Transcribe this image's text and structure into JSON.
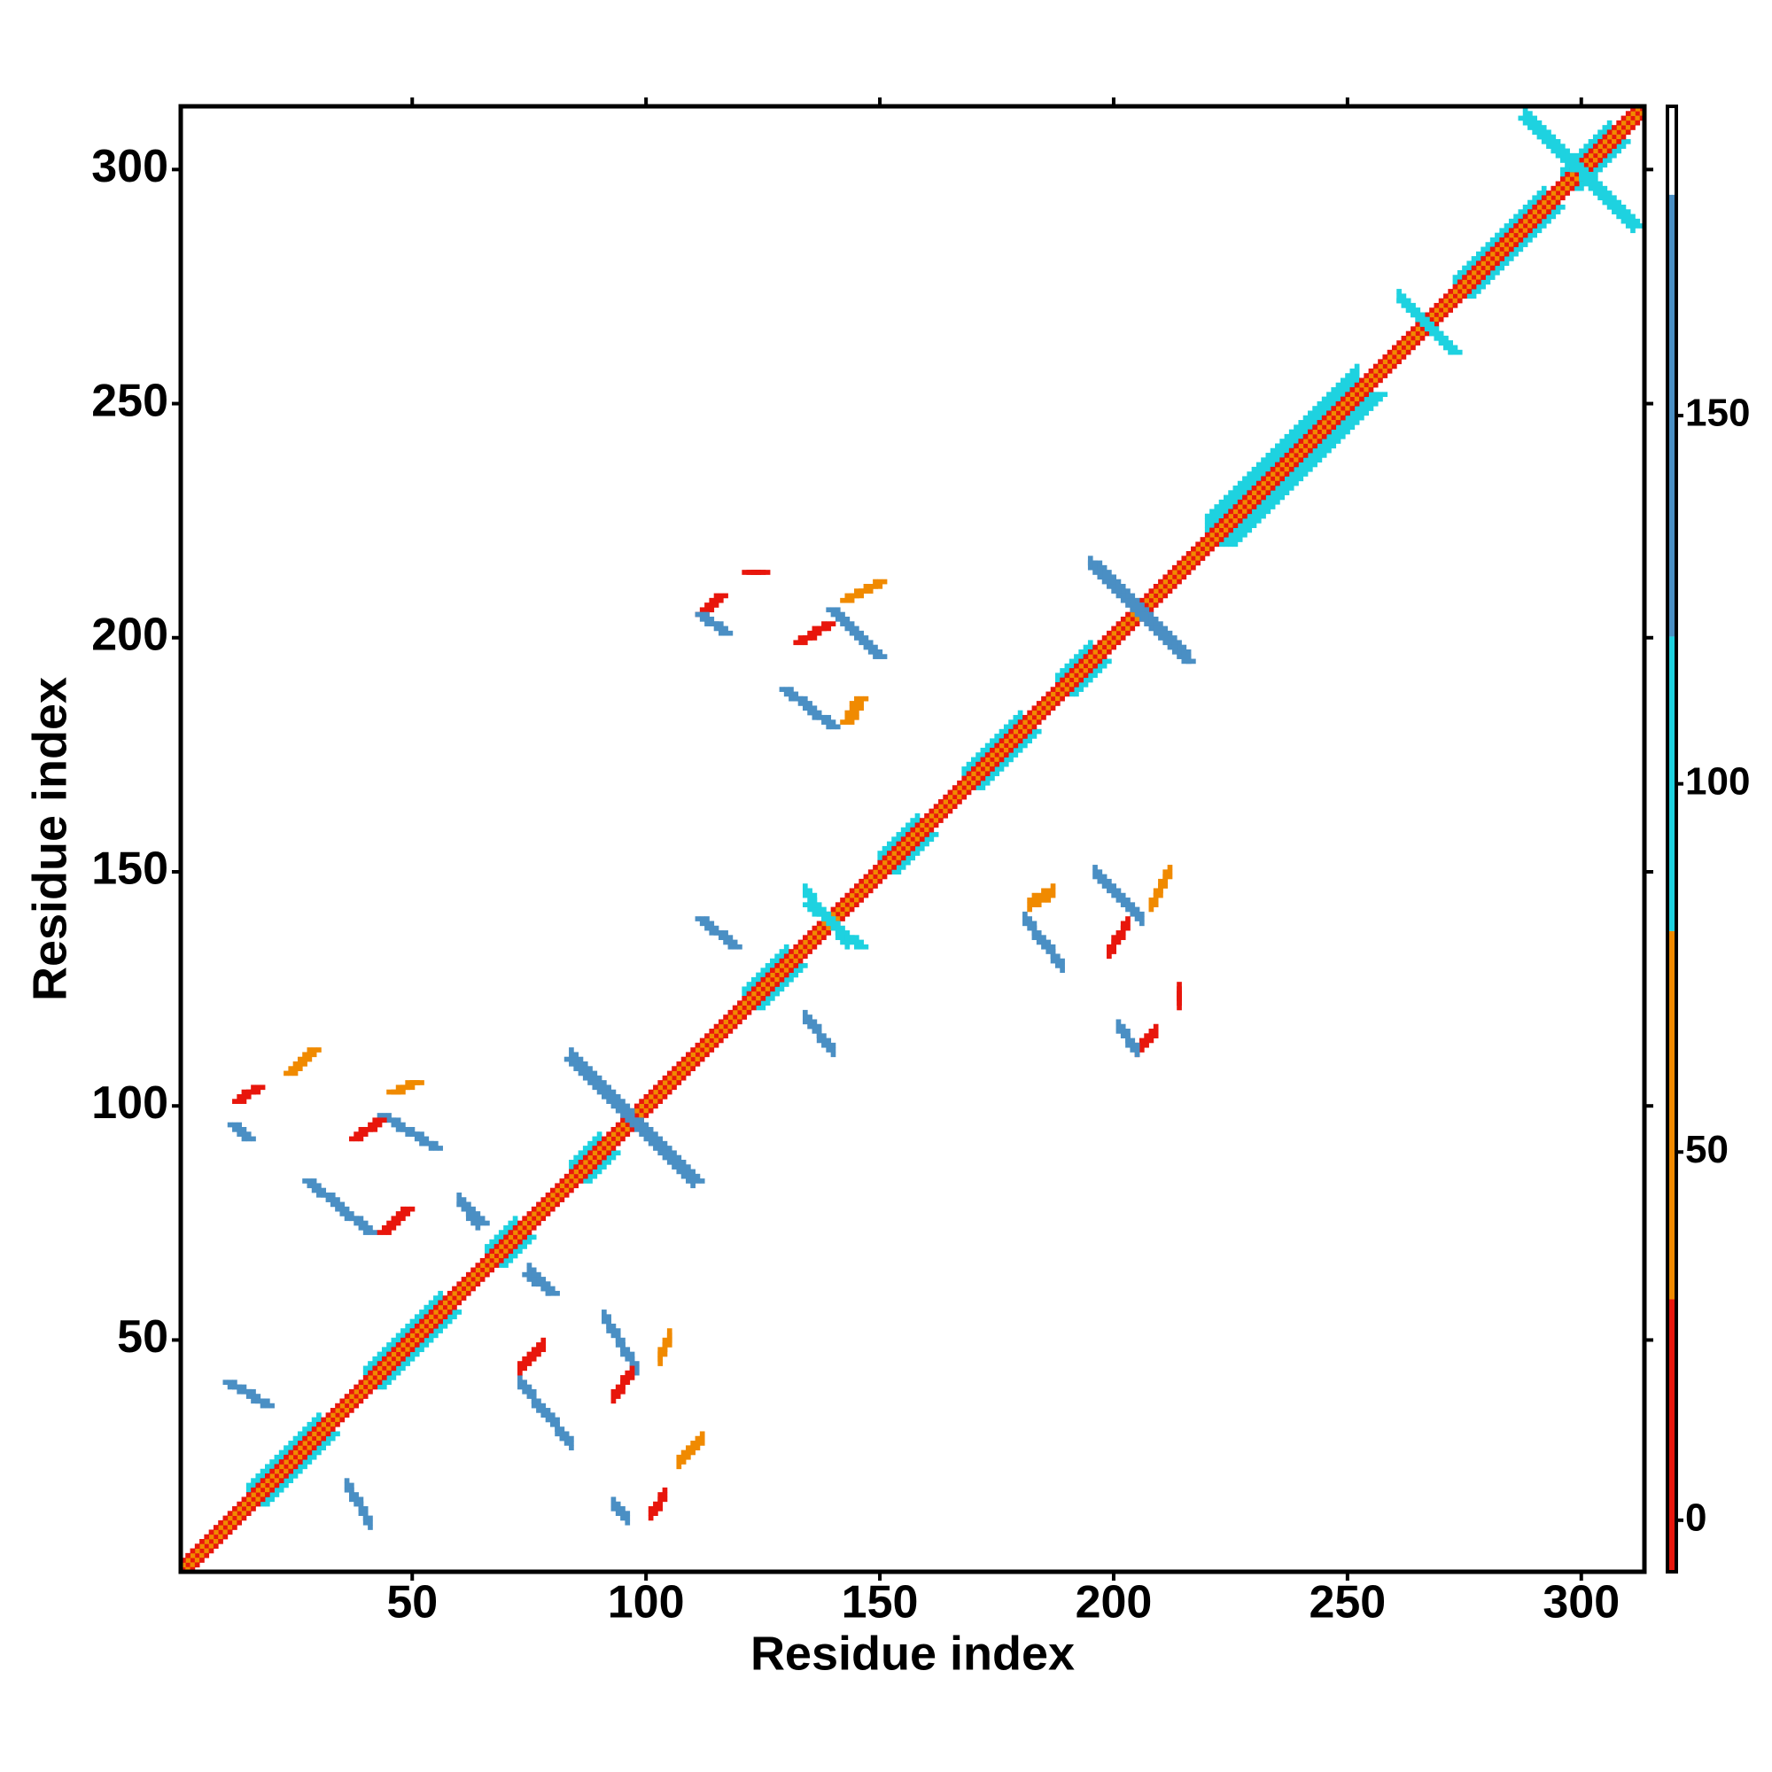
{
  "chart_data": {
    "type": "heatmap",
    "xlabel": "Residue index",
    "ylabel": "Residue index",
    "xlim": [
      0.5,
      313.5
    ],
    "ylim": [
      0.5,
      313.5
    ],
    "xticks": [
      50,
      100,
      150,
      200,
      250,
      300
    ],
    "yticks": [
      50,
      100,
      150,
      200,
      250,
      300
    ],
    "symmetric": true,
    "diagonal": {
      "offsets": [
        0,
        1,
        2
      ],
      "values": [
        10,
        60,
        10
      ]
    },
    "bands": [
      {
        "range": [
          15,
          30
        ],
        "offsets": [
          3,
          4
        ],
        "value": 95
      },
      {
        "range": [
          40,
          56
        ],
        "offsets": [
          3,
          4
        ],
        "value": 95
      },
      {
        "range": [
          66,
          72
        ],
        "offsets": [
          3,
          4
        ],
        "value": 95
      },
      {
        "range": [
          84,
          90
        ],
        "offsets": [
          3,
          4
        ],
        "value": 95
      },
      {
        "range": [
          121,
          130
        ],
        "offsets": [
          3,
          4
        ],
        "value": 95
      },
      {
        "range": [
          150,
          158
        ],
        "offsets": [
          3,
          4
        ],
        "value": 95
      },
      {
        "range": [
          168,
          180
        ],
        "offsets": [
          3,
          4
        ],
        "value": 95
      },
      {
        "range": [
          188,
          195
        ],
        "offsets": [
          3,
          4
        ],
        "value": 95
      },
      {
        "range": [
          220,
          252
        ],
        "offsets": [
          3,
          4,
          5,
          6
        ],
        "value": 95
      },
      {
        "range": [
          273,
          292
        ],
        "offsets": [
          3,
          4
        ],
        "value": 95
      },
      {
        "range": [
          296,
          306
        ],
        "offsets": [
          3,
          4
        ],
        "value": 95
      }
    ],
    "contacts": [
      {
        "x": [
          11,
          19
        ],
        "y": [
          41,
          36
        ],
        "value": 150
      },
      {
        "x": [
          28,
          41
        ],
        "y": [
          84,
          73
        ],
        "value": 150
      },
      {
        "x": [
          44,
          55
        ],
        "y": [
          98,
          91
        ],
        "value": 150
      },
      {
        "x": [
          13,
          17
        ],
        "y": [
          101,
          104
        ],
        "value": 10
      },
      {
        "x": [
          12,
          15
        ],
        "y": [
          96,
          93
        ],
        "value": 150
      },
      {
        "x": [
          24,
          29
        ],
        "y": [
          107,
          112
        ],
        "value": 30
      },
      {
        "x": [
          44,
          49
        ],
        "y": [
          73,
          78
        ],
        "value": 10
      },
      {
        "x": [
          46,
          51
        ],
        "y": [
          103,
          105
        ],
        "value": 60
      },
      {
        "x": [
          38,
          43
        ],
        "y": [
          93,
          97
        ],
        "value": 10
      },
      {
        "x": [
          61,
          65
        ],
        "y": [
          79,
          75
        ],
        "value": 150
      },
      {
        "x": [
          75,
          80
        ],
        "y": [
          64,
          60
        ],
        "value": 150
      },
      {
        "x": [
          112,
          116
        ],
        "y": [
          205,
          209
        ],
        "value": 10
      },
      {
        "x": [
          112,
          117
        ],
        "y": [
          205,
          201
        ],
        "value": 150
      },
      {
        "x": [
          122,
          125
        ],
        "y": [
          214,
          214
        ],
        "value": 10
      },
      {
        "x": [
          140,
          150
        ],
        "y": [
          206,
          196
        ],
        "value": 150
      },
      {
        "x": [
          143,
          150
        ],
        "y": [
          208,
          212
        ],
        "value": 60
      },
      {
        "x": [
          133,
          139
        ],
        "y": [
          199,
          203
        ],
        "value": 10
      },
      {
        "x": [
          130,
          140
        ],
        "y": [
          189,
          181
        ],
        "value": 150
      },
      {
        "x": [
          143,
          146
        ],
        "y": [
          182,
          187
        ],
        "value": 30
      },
      {
        "x": [
          112,
          119
        ],
        "y": [
          140,
          134
        ],
        "value": 150
      },
      {
        "x": [
          135,
          146
        ],
        "y": [
          143,
          134
        ],
        "value": 95
      },
      {
        "x": [
          196,
          216
        ],
        "y": [
          216,
          195
        ],
        "value": 150
      },
      {
        "x": [
          84,
          111
        ],
        "y": [
          110,
          84
        ],
        "value": 150
      },
      {
        "x": [
          262,
          273
        ],
        "y": [
          272,
          261
        ],
        "value": 95
      },
      {
        "x": [
          288,
          312
        ],
        "y": [
          311,
          288
        ],
        "value": 95
      }
    ],
    "colorbar": {
      "lim": [
        -7,
        192
      ],
      "ticks": [
        0,
        50,
        100,
        150
      ],
      "bins": [
        -7,
        30,
        80,
        120,
        180,
        192
      ],
      "colors": [
        "#e8160c",
        "#f08a00",
        "#1ed2e0",
        "#4a8fc4",
        "#ffffff"
      ]
    }
  }
}
